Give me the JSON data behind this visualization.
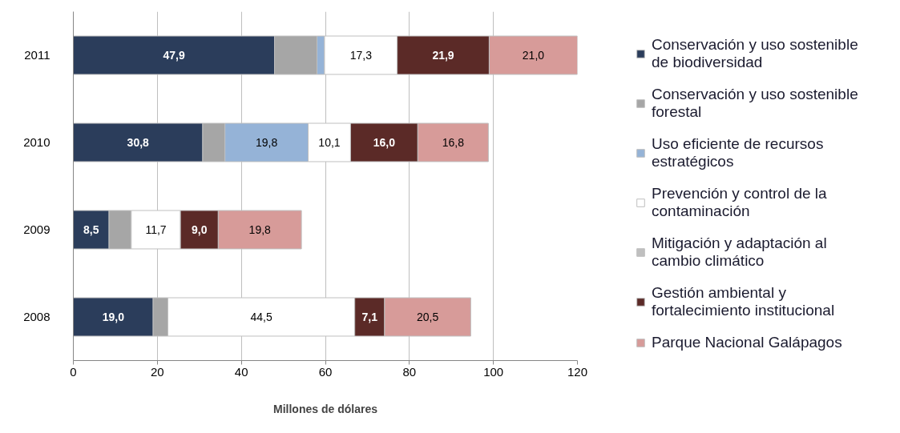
{
  "chart_data": {
    "type": "bar",
    "orientation": "horizontal",
    "stacked": true,
    "categories": [
      "2011",
      "2010",
      "2009",
      "2008"
    ],
    "xlabel": "Millones de dólares",
    "xlim": [
      0,
      120
    ],
    "xticks": [
      0,
      20,
      40,
      60,
      80,
      100,
      120
    ],
    "grid": "x",
    "legend": "right",
    "series": [
      {
        "name": "Conservación y uso sostenible de biodiversidad",
        "color": "#2b3d5b",
        "values": [
          47.9,
          30.8,
          8.5,
          19.0
        ],
        "value_labels": [
          "47,9",
          "30,8",
          "8,5",
          "19,0"
        ]
      },
      {
        "name": "Conservación y uso sostenible forestal",
        "color": "#a6a6a6",
        "values": [
          10.1,
          5.3,
          5.3,
          3.5
        ]
      },
      {
        "name": "Uso eficiente de recursos estratégicos",
        "color": "#95b3d7",
        "values": [
          1.8,
          19.8,
          null,
          null
        ],
        "value_labels": [
          null,
          "19,8",
          null,
          null
        ]
      },
      {
        "name": "Prevención y control de la contaminación",
        "color": "#ffffff",
        "values": [
          17.3,
          10.1,
          11.7,
          44.5
        ],
        "value_labels": [
          "17,3",
          "10,1",
          "11,7",
          "44,5"
        ]
      },
      {
        "name": "Mitigación y adaptación al cambio climático",
        "color": "#bfbfbf",
        "values": [
          null,
          null,
          null,
          null
        ]
      },
      {
        "name": "Gestión ambiental y fortalecimiento institucional",
        "color": "#5b2a27",
        "values": [
          21.9,
          16.0,
          9.0,
          7.1
        ],
        "value_labels": [
          "21,9",
          "16,0",
          "9,0",
          "7,1"
        ]
      },
      {
        "name": "Parque Nacional Galápagos",
        "color": "#d79b99",
        "values": [
          21.0,
          16.8,
          19.8,
          20.5
        ],
        "value_labels": [
          "21,0",
          "16,8",
          "19,8",
          "20,5"
        ]
      }
    ]
  }
}
